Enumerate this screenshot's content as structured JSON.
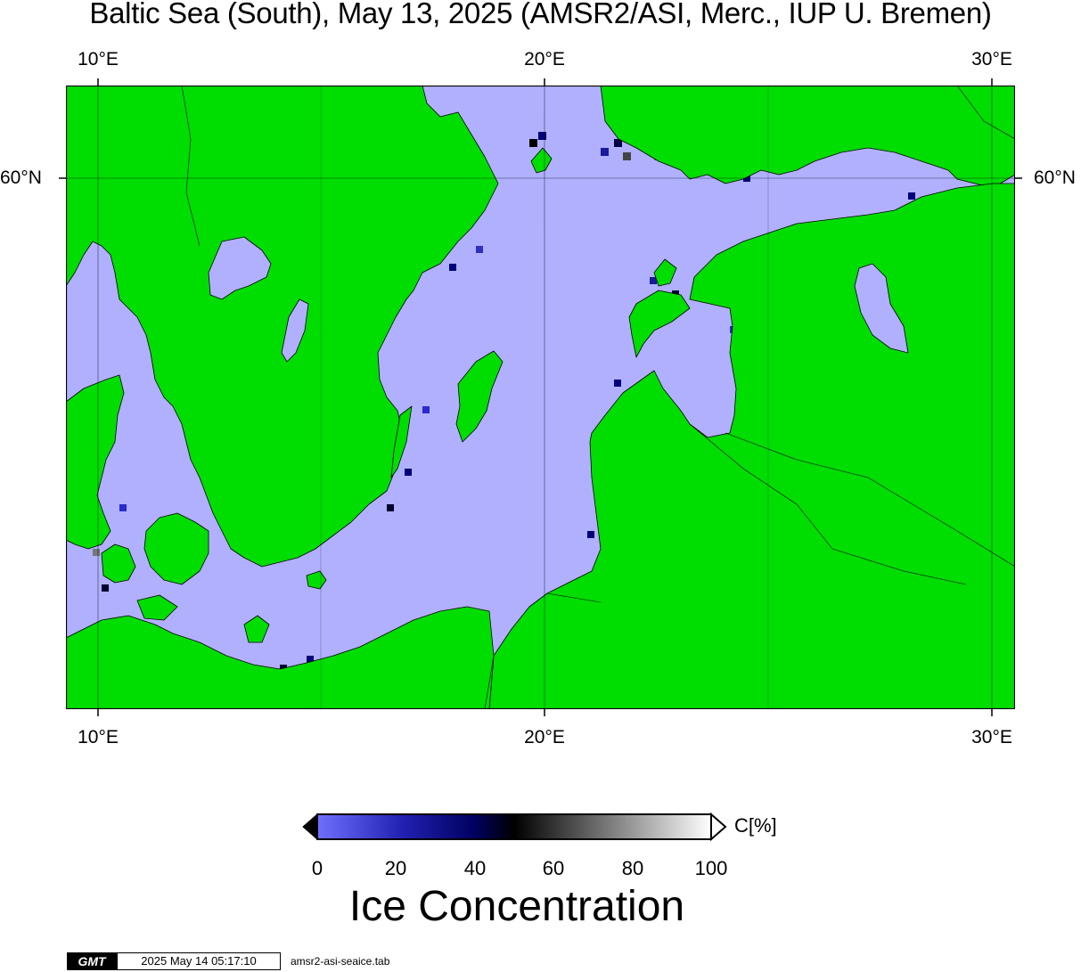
{
  "title": "Baltic Sea (South), May 13, 2025 (AMSR2/ASI, Merc., IUP U. Bremen)",
  "axes": {
    "lon_ticks": [
      {
        "label": "10°E",
        "value": 10
      },
      {
        "label": "20°E",
        "value": 20
      },
      {
        "label": "30°E",
        "value": 30
      }
    ],
    "lat_ticks": [
      {
        "label": "60°N",
        "value": 60
      }
    ]
  },
  "colors": {
    "land": "#00dd00",
    "open_water": "#b0b0ff",
    "coast": "#000000"
  },
  "colorbar": {
    "unit": "C[%]",
    "labels": [
      "0",
      "20",
      "40",
      "60",
      "80",
      "100"
    ],
    "range": [
      0,
      100
    ],
    "title": "Ice Concentration"
  },
  "footer": {
    "logo": "GMT",
    "timestamp": "2025 May 14 05:17:10",
    "filename": "amsr2-asi-seaice.tab"
  }
}
